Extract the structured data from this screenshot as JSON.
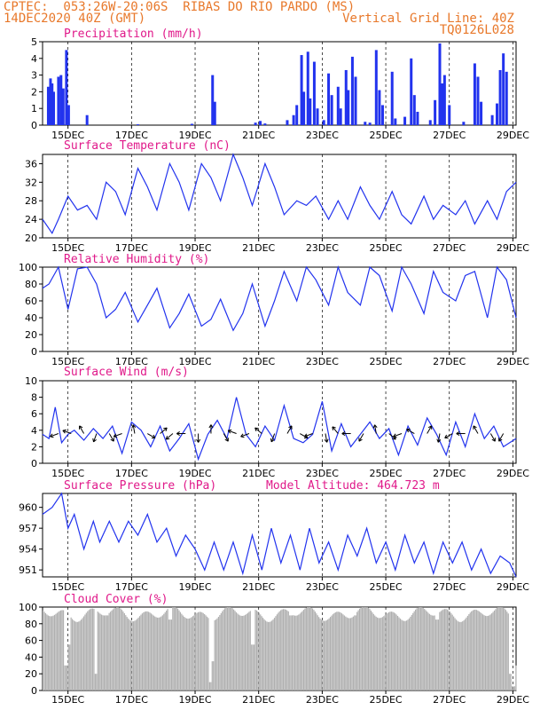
{
  "header": {
    "line1": "CPTEC:  053:26W-20:06S  RIBAS DO RIO PARDO (MS)",
    "line2": "14DEC2020 40Z (GMT)",
    "grid_note": "Vertical Grid Line: 40Z",
    "code": "TQ0126L028"
  },
  "colors": {
    "title": "#e0198a",
    "header": "#e8782a",
    "series": "#2233ee",
    "cloud": "#b0b0b0",
    "arrow": "#000000"
  },
  "chart_data": [
    {
      "type": "bar",
      "title": "Precipitation (mm/h)",
      "ylim": [
        0,
        5
      ],
      "yticks": [
        0,
        1,
        2,
        3,
        4,
        5
      ],
      "xtick_labels": [
        "15DEC",
        "17DEC",
        "19DEC",
        "21DEC",
        "23DEC",
        "25DEC",
        "27DEC",
        "29DEC"
      ],
      "xlim_days": [
        14.2,
        29.1
      ],
      "bars": [
        [
          14.38,
          2.3
        ],
        [
          14.45,
          2.8
        ],
        [
          14.5,
          2.5
        ],
        [
          14.55,
          2.0
        ],
        [
          14.7,
          2.9
        ],
        [
          14.78,
          3.0
        ],
        [
          14.85,
          2.2
        ],
        [
          14.95,
          4.5
        ],
        [
          15.02,
          1.2
        ],
        [
          15.6,
          0.6
        ],
        [
          17.2,
          0.05
        ],
        [
          18.9,
          0.08
        ],
        [
          19.55,
          3.0
        ],
        [
          19.62,
          1.4
        ],
        [
          20.9,
          0.15
        ],
        [
          21.05,
          0.25
        ],
        [
          21.2,
          0.1
        ],
        [
          21.9,
          0.3
        ],
        [
          22.1,
          0.6
        ],
        [
          22.2,
          1.2
        ],
        [
          22.35,
          4.2
        ],
        [
          22.42,
          2.0
        ],
        [
          22.55,
          4.4
        ],
        [
          22.62,
          1.6
        ],
        [
          22.75,
          3.8
        ],
        [
          22.85,
          1.0
        ],
        [
          23.05,
          0.3
        ],
        [
          23.2,
          3.1
        ],
        [
          23.3,
          1.8
        ],
        [
          23.5,
          2.3
        ],
        [
          23.58,
          1.0
        ],
        [
          23.75,
          3.3
        ],
        [
          23.82,
          2.1
        ],
        [
          23.95,
          4.1
        ],
        [
          24.05,
          2.9
        ],
        [
          24.35,
          0.2
        ],
        [
          24.5,
          0.15
        ],
        [
          24.7,
          4.5
        ],
        [
          24.8,
          2.1
        ],
        [
          24.9,
          1.2
        ],
        [
          25.2,
          3.2
        ],
        [
          25.3,
          0.4
        ],
        [
          25.6,
          0.5
        ],
        [
          25.8,
          4.0
        ],
        [
          25.9,
          1.8
        ],
        [
          26.0,
          0.8
        ],
        [
          26.4,
          0.3
        ],
        [
          26.55,
          1.5
        ],
        [
          26.7,
          4.9
        ],
        [
          26.78,
          2.5
        ],
        [
          26.85,
          3.0
        ],
        [
          27.0,
          1.2
        ],
        [
          27.45,
          0.2
        ],
        [
          27.8,
          3.7
        ],
        [
          27.9,
          2.9
        ],
        [
          28.0,
          1.4
        ],
        [
          28.35,
          0.6
        ],
        [
          28.5,
          1.3
        ],
        [
          28.6,
          3.3
        ],
        [
          28.7,
          4.3
        ],
        [
          28.8,
          3.2
        ]
      ]
    },
    {
      "type": "line",
      "title": "Surface Temperature (nC)",
      "ylim": [
        20,
        38
      ],
      "yticks": [
        20,
        24,
        28,
        32,
        36
      ],
      "xtick_labels": [
        "15DEC",
        "17DEC",
        "19DEC",
        "21DEC",
        "23DEC",
        "25DEC",
        "27DEC",
        "29DEC"
      ],
      "x_days": [
        14.2,
        14.5,
        14.7,
        15.0,
        15.3,
        15.6,
        15.9,
        16.2,
        16.5,
        16.8,
        17.2,
        17.5,
        17.8,
        18.2,
        18.5,
        18.8,
        19.2,
        19.5,
        19.8,
        20.2,
        20.5,
        20.8,
        21.2,
        21.5,
        21.8,
        22.2,
        22.5,
        22.8,
        23.2,
        23.5,
        23.8,
        24.2,
        24.5,
        24.8,
        25.2,
        25.5,
        25.8,
        26.2,
        26.5,
        26.8,
        27.2,
        27.5,
        27.8,
        28.2,
        28.5,
        28.8,
        29.1
      ],
      "values": [
        24,
        21,
        24,
        29,
        26,
        27,
        24,
        32,
        30,
        25,
        35,
        31,
        26,
        36,
        32,
        26,
        36,
        33,
        28,
        38,
        33,
        27,
        36,
        31,
        25,
        28,
        27,
        29,
        24,
        28,
        24,
        31,
        27,
        24,
        30,
        25,
        23,
        29,
        24,
        27,
        25,
        28,
        23,
        28,
        24,
        30,
        32
      ]
    },
    {
      "type": "line",
      "title": "Relative Humidity (%)",
      "ylim": [
        0,
        100
      ],
      "yticks": [
        0,
        20,
        40,
        60,
        80,
        100
      ],
      "xtick_labels": [
        "15DEC",
        "17DEC",
        "19DEC",
        "21DEC",
        "23DEC",
        "25DEC",
        "27DEC",
        "29DEC"
      ],
      "x_days": [
        14.2,
        14.4,
        14.7,
        15.0,
        15.3,
        15.6,
        15.9,
        16.2,
        16.5,
        16.8,
        17.2,
        17.5,
        17.8,
        18.2,
        18.5,
        18.8,
        19.2,
        19.5,
        19.8,
        20.2,
        20.5,
        20.8,
        21.2,
        21.5,
        21.8,
        22.2,
        22.5,
        22.8,
        23.2,
        23.5,
        23.8,
        24.2,
        24.5,
        24.8,
        25.2,
        25.5,
        25.8,
        26.2,
        26.5,
        26.8,
        27.2,
        27.5,
        27.8,
        28.2,
        28.5,
        28.8,
        29.1
      ],
      "values": [
        75,
        80,
        100,
        50,
        98,
        100,
        80,
        40,
        50,
        70,
        35,
        55,
        75,
        28,
        45,
        68,
        30,
        38,
        62,
        25,
        45,
        80,
        30,
        60,
        95,
        60,
        100,
        85,
        55,
        100,
        70,
        55,
        100,
        90,
        48,
        100,
        80,
        45,
        95,
        70,
        60,
        90,
        95,
        40,
        100,
        85,
        40
      ]
    },
    {
      "type": "line",
      "title": "Surface Wind (m/s)",
      "ylim": [
        0,
        10
      ],
      "yticks": [
        0,
        2,
        4,
        6,
        8,
        10
      ],
      "xtick_labels": [
        "15DEC",
        "17DEC",
        "19DEC",
        "21DEC",
        "23DEC",
        "25DEC",
        "27DEC",
        "29DEC"
      ],
      "x_days": [
        14.2,
        14.4,
        14.6,
        14.8,
        15.0,
        15.2,
        15.5,
        15.8,
        16.1,
        16.4,
        16.7,
        17.0,
        17.3,
        17.6,
        17.9,
        18.2,
        18.5,
        18.8,
        19.1,
        19.4,
        19.7,
        20.0,
        20.3,
        20.6,
        20.9,
        21.2,
        21.5,
        21.8,
        22.1,
        22.4,
        22.7,
        23.0,
        23.3,
        23.6,
        23.9,
        24.2,
        24.5,
        24.8,
        25.1,
        25.4,
        25.7,
        26.0,
        26.3,
        26.6,
        26.9,
        27.2,
        27.5,
        27.8,
        28.1,
        28.4,
        28.7,
        29.1
      ],
      "values": [
        3.5,
        3,
        6.8,
        2.5,
        3.5,
        4,
        2.8,
        4.2,
        3,
        4.5,
        1.2,
        5,
        4,
        2,
        4.5,
        1.5,
        3,
        4.8,
        0.5,
        3.5,
        5.2,
        3,
        8,
        3.5,
        2,
        4.5,
        2.8,
        7,
        3,
        2.5,
        3.5,
        7.5,
        1.5,
        4.8,
        2,
        3.5,
        5,
        3,
        4.2,
        1,
        4.5,
        2.2,
        5.5,
        3.5,
        1,
        5,
        2,
        6,
        3,
        4.5,
        2,
        3
      ]
    },
    {
      "type": "line",
      "title": "Surface Pressure (hPa)",
      "annotation": "Model Altitude: 464.723 m",
      "ylim": [
        950,
        962
      ],
      "yticks": [
        951,
        954,
        957,
        960
      ],
      "xtick_labels": [
        "15DEC",
        "17DEC",
        "19DEC",
        "21DEC",
        "23DEC",
        "25DEC",
        "27DEC",
        "29DEC"
      ],
      "x_days": [
        14.2,
        14.5,
        14.8,
        15.0,
        15.2,
        15.5,
        15.8,
        16.0,
        16.3,
        16.6,
        16.9,
        17.2,
        17.5,
        17.8,
        18.1,
        18.4,
        18.7,
        19.0,
        19.3,
        19.6,
        19.9,
        20.2,
        20.5,
        20.8,
        21.1,
        21.4,
        21.7,
        22.0,
        22.3,
        22.6,
        22.9,
        23.2,
        23.5,
        23.8,
        24.1,
        24.4,
        24.7,
        25.0,
        25.3,
        25.6,
        25.9,
        26.2,
        26.5,
        26.8,
        27.1,
        27.4,
        27.7,
        28.0,
        28.3,
        28.6,
        28.9,
        29.1
      ],
      "values": [
        959,
        960,
        962,
        957,
        959,
        954,
        958,
        955,
        958,
        955,
        958,
        956,
        959,
        955,
        957,
        953,
        956,
        954,
        951,
        955,
        951,
        955,
        950.5,
        956,
        951,
        957,
        952,
        956,
        951,
        957,
        952,
        955,
        951,
        956,
        953,
        957,
        952,
        955,
        951,
        956,
        952,
        955,
        950.5,
        955,
        952,
        955,
        951,
        954,
        950.5,
        953,
        952,
        950
      ]
    },
    {
      "type": "bar",
      "title": "Cloud Cover (%)",
      "ylim": [
        0,
        100
      ],
      "yticks": [
        0,
        20,
        40,
        60,
        80,
        100
      ],
      "xtick_labels": [
        "15DEC",
        "17DEC",
        "19DEC",
        "21DEC",
        "23DEC",
        "25DEC",
        "27DEC",
        "29DEC"
      ],
      "dips": [
        [
          14.92,
          30
        ],
        [
          15.0,
          55
        ],
        [
          15.85,
          20
        ],
        [
          16.2,
          90
        ],
        [
          18.2,
          85
        ],
        [
          19.45,
          10
        ],
        [
          19.55,
          35
        ],
        [
          20.8,
          55
        ],
        [
          22.0,
          90
        ],
        [
          24.0,
          90
        ],
        [
          26.6,
          85
        ],
        [
          28.9,
          20
        ],
        [
          29.0,
          5
        ],
        [
          29.05,
          30
        ]
      ]
    }
  ]
}
